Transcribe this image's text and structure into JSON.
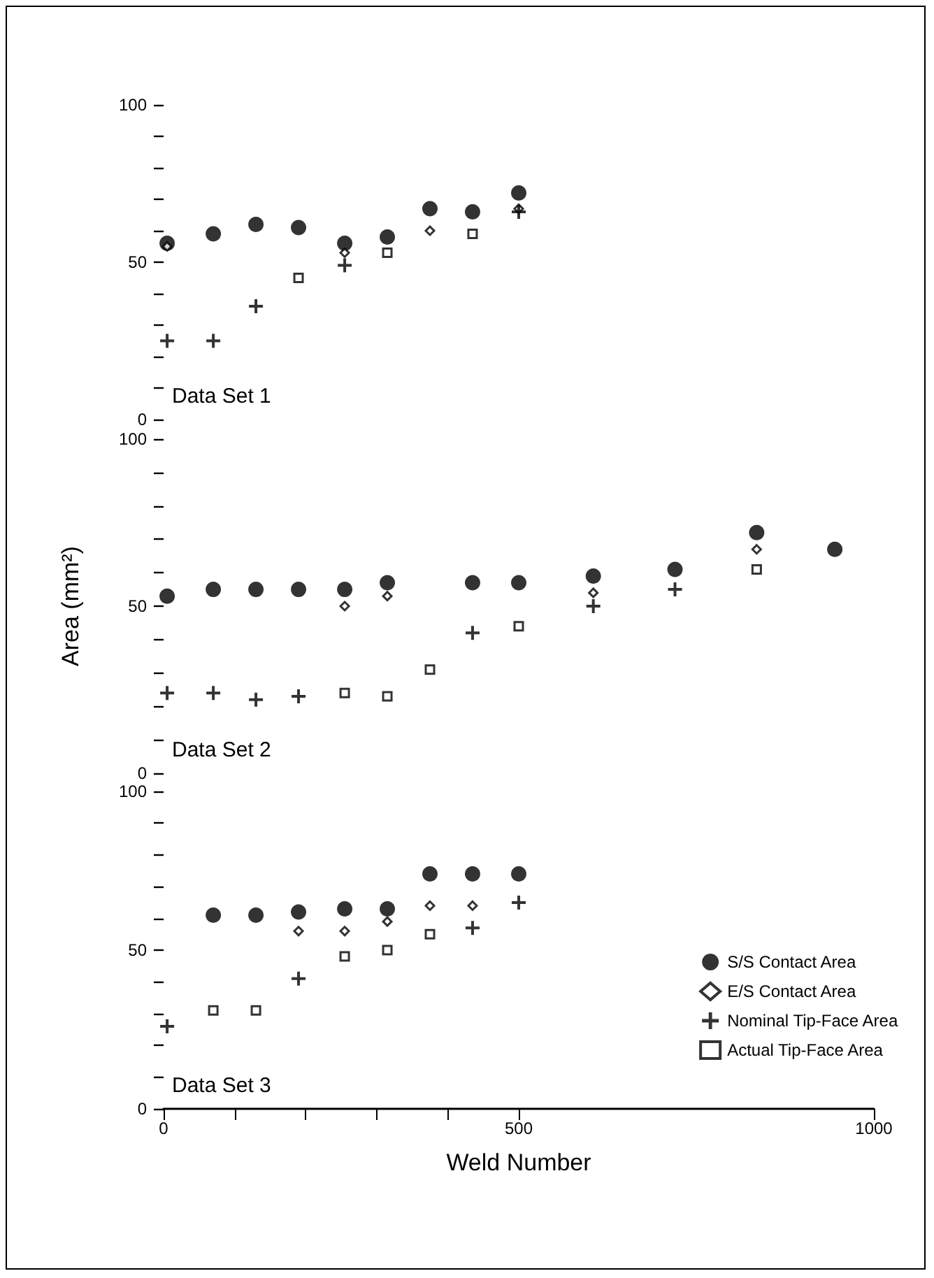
{
  "chart_data": [
    {
      "type": "scatter",
      "annotations": [
        "Data Set 1"
      ],
      "tick_labels": "y",
      "legend": false,
      "x": [
        5,
        70,
        130,
        190,
        255,
        315,
        375,
        435,
        500
      ],
      "xlim": [
        0,
        1000
      ],
      "ylim": [
        0,
        100
      ],
      "yticks": [
        0,
        {
          "value": 10,
          "label": null
        },
        {
          "value": 20,
          "label": null
        },
        {
          "value": 30,
          "label": null
        },
        {
          "value": 40,
          "label": null
        },
        50,
        {
          "value": 60,
          "label": null
        },
        {
          "value": 70,
          "label": null
        },
        {
          "value": 80,
          "label": null
        },
        {
          "value": 90,
          "label": null
        },
        100
      ],
      "series": [
        {
          "color": "#000000",
          "marker": "circle",
          "values": [
            56,
            59,
            62,
            61,
            56,
            58,
            67,
            66,
            72
          ]
        },
        {
          "color": "#000000",
          "marker": "diamond",
          "values": [
            55,
            null,
            null,
            null,
            53,
            null,
            60,
            null,
            67
          ]
        },
        {
          "color": "#000000",
          "marker": "cross",
          "values": [
            25,
            25,
            36,
            null,
            49,
            null,
            null,
            null,
            66
          ]
        },
        {
          "color": "#000000",
          "marker": "square",
          "values": [
            null,
            null,
            null,
            45,
            null,
            53,
            null,
            59,
            null
          ]
        }
      ]
    },
    {
      "type": "scatter",
      "annotations": [
        "Data Set 2"
      ],
      "tick_labels": "y",
      "legend": false,
      "ylabel": "Area (mm²)",
      "x": [
        5,
        70,
        130,
        190,
        255,
        315,
        375,
        435,
        500,
        605,
        720,
        835,
        945
      ],
      "xlim": [
        0,
        1000
      ],
      "ylim": [
        0,
        100
      ],
      "yticks": [
        0,
        {
          "value": 10,
          "label": null
        },
        {
          "value": 20,
          "label": null
        },
        {
          "value": 30,
          "label": null
        },
        {
          "value": 40,
          "label": null
        },
        50,
        {
          "value": 60,
          "label": null
        },
        {
          "value": 70,
          "label": null
        },
        {
          "value": 80,
          "label": null
        },
        {
          "value": 90,
          "label": null
        },
        100
      ],
      "series": [
        {
          "color": "#000000",
          "marker": "circle",
          "values": [
            53,
            55,
            55,
            55,
            55,
            57,
            null,
            57,
            57,
            59,
            61,
            72,
            67
          ]
        },
        {
          "color": "#000000",
          "marker": "diamond",
          "values": [
            null,
            null,
            null,
            null,
            50,
            53,
            null,
            null,
            null,
            54,
            null,
            67,
            null
          ]
        },
        {
          "color": "#000000",
          "marker": "cross",
          "values": [
            24,
            24,
            22,
            23,
            null,
            null,
            null,
            42,
            null,
            50,
            55,
            null,
            null
          ]
        },
        {
          "color": "#000000",
          "marker": "square",
          "values": [
            null,
            null,
            null,
            null,
            24,
            23,
            31,
            null,
            44,
            null,
            null,
            61,
            null
          ]
        }
      ]
    },
    {
      "type": "scatter",
      "annotations": [
        "Data Set 3"
      ],
      "legend": "bottom right",
      "xlabel": "Weld Number",
      "x": [
        5,
        70,
        130,
        190,
        255,
        315,
        375,
        435,
        500
      ],
      "xlim": [
        0,
        1000
      ],
      "xticks": [
        0,
        {
          "value": 100,
          "label": null
        },
        {
          "value": 200,
          "label": null
        },
        {
          "value": 300,
          "label": null
        },
        {
          "value": 400,
          "label": null
        },
        500,
        {
          "value": 1000,
          "label": "1000"
        }
      ],
      "ylim": [
        0,
        100
      ],
      "yticks": [
        0,
        {
          "value": 10,
          "label": null
        },
        {
          "value": 20,
          "label": null
        },
        {
          "value": 30,
          "label": null
        },
        {
          "value": 40,
          "label": null
        },
        50,
        {
          "value": 60,
          "label": null
        },
        {
          "value": 70,
          "label": null
        },
        {
          "value": 80,
          "label": null
        },
        {
          "value": 90,
          "label": null
        },
        100
      ],
      "series": [
        {
          "name": "S/S Contact Area",
          "color": "#000000",
          "marker": "circle",
          "values": [
            null,
            61,
            61,
            62,
            63,
            63,
            74,
            74,
            74
          ]
        },
        {
          "name": "E/S Contact Area",
          "color": "#000000",
          "marker": "diamond",
          "values": [
            null,
            null,
            null,
            56,
            56,
            59,
            64,
            64,
            null
          ]
        },
        {
          "name": "Nominal Tip-Face Area",
          "color": "#000000",
          "marker": "cross",
          "values": [
            26,
            null,
            null,
            41,
            null,
            null,
            null,
            57,
            65
          ]
        },
        {
          "name": "Actual Tip-Face Area",
          "color": "#000000",
          "marker": "square",
          "values": [
            null,
            31,
            31,
            null,
            48,
            50,
            55,
            null,
            null
          ]
        }
      ]
    }
  ]
}
